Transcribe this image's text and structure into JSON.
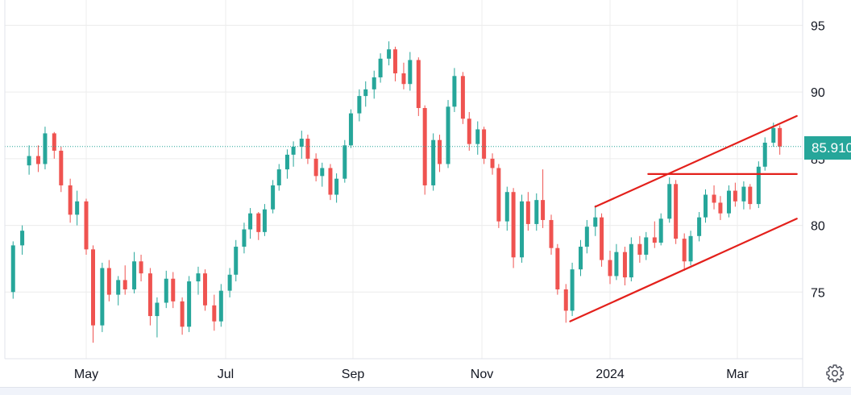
{
  "chart_data": {
    "type": "candlestick",
    "title": "",
    "xlabel": "",
    "ylabel": "",
    "ylim": [
      70,
      96.9
    ],
    "grid": true,
    "y_ticks": [
      75,
      80,
      85,
      90,
      95
    ],
    "y_tick_labels": [
      "75",
      "80",
      "85",
      "90",
      "95"
    ],
    "x_ticks": [
      {
        "date": "2023-05-01",
        "label": "May"
      },
      {
        "date": "2023-07-01",
        "label": "Jul"
      },
      {
        "date": "2023-09-01",
        "label": "Sep"
      },
      {
        "date": "2023-11-01",
        "label": "Nov"
      },
      {
        "date": "2024-01-01",
        "label": "2024"
      },
      {
        "date": "2024-03-01",
        "label": "Mar"
      }
    ],
    "last_price": 85.91,
    "last_price_label": "85.910",
    "colors": {
      "up": "#26a69a",
      "down": "#ef5350",
      "trendline": "#e3201b",
      "grid": "#ececec",
      "last_price": "#26a69a"
    },
    "trendlines": [
      {
        "name": "channel-upper",
        "from": [
          "2023-12-25",
          81.4
        ],
        "to": [
          "2024-03-29",
          88.2
        ]
      },
      {
        "name": "channel-lower",
        "from": [
          "2023-12-13",
          72.8
        ],
        "to": [
          "2024-03-29",
          80.5
        ]
      },
      {
        "name": "horizontal-resistance",
        "from": [
          "2024-01-19",
          83.85
        ],
        "to": [
          "2024-03-29",
          83.85
        ]
      }
    ],
    "candles_columns": [
      "date",
      "open",
      "high",
      "low",
      "close"
    ],
    "candles": [
      [
        "2023-03-30",
        75.0,
        78.8,
        74.5,
        78.5
      ],
      [
        "2023-04-03",
        78.5,
        80.0,
        77.8,
        79.6
      ],
      [
        "2023-04-06",
        84.5,
        86.0,
        83.8,
        85.2
      ],
      [
        "2023-04-10",
        85.2,
        86.0,
        84.0,
        84.6
      ],
      [
        "2023-04-13",
        84.6,
        87.4,
        84.2,
        86.9
      ],
      [
        "2023-04-17",
        86.9,
        87.0,
        85.0,
        85.6
      ],
      [
        "2023-04-20",
        85.6,
        85.9,
        82.5,
        83.0
      ],
      [
        "2023-04-24",
        83.0,
        83.5,
        80.2,
        80.8
      ],
      [
        "2023-04-27",
        80.8,
        82.6,
        80.0,
        81.8
      ],
      [
        "2023-05-01",
        81.8,
        82.0,
        77.8,
        78.2
      ],
      [
        "2023-05-04",
        78.2,
        78.5,
        71.2,
        72.5
      ],
      [
        "2023-05-08",
        72.5,
        77.2,
        72.0,
        76.8
      ],
      [
        "2023-05-11",
        76.8,
        77.4,
        74.3,
        74.8
      ],
      [
        "2023-05-15",
        74.8,
        76.2,
        74.0,
        75.9
      ],
      [
        "2023-05-18",
        75.9,
        77.0,
        74.8,
        75.2
      ],
      [
        "2023-05-22",
        75.2,
        78.0,
        74.9,
        77.3
      ],
      [
        "2023-05-25",
        77.3,
        77.8,
        75.8,
        76.4
      ],
      [
        "2023-05-29",
        76.4,
        76.8,
        72.5,
        73.2
      ],
      [
        "2023-06-01",
        73.2,
        74.6,
        71.6,
        74.2
      ],
      [
        "2023-06-05",
        74.2,
        76.6,
        73.8,
        76.0
      ],
      [
        "2023-06-08",
        76.0,
        76.5,
        73.8,
        74.3
      ],
      [
        "2023-06-12",
        74.3,
        74.6,
        71.8,
        72.4
      ],
      [
        "2023-06-15",
        72.4,
        76.2,
        72.0,
        75.8
      ],
      [
        "2023-06-19",
        75.8,
        76.9,
        74.8,
        76.4
      ],
      [
        "2023-06-22",
        76.4,
        76.7,
        73.6,
        74.0
      ],
      [
        "2023-06-26",
        74.0,
        74.8,
        72.1,
        72.8
      ],
      [
        "2023-06-29",
        72.8,
        75.6,
        72.4,
        75.1
      ],
      [
        "2023-07-03",
        75.1,
        76.8,
        74.6,
        76.3
      ],
      [
        "2023-07-06",
        76.3,
        78.9,
        75.8,
        78.4
      ],
      [
        "2023-07-10",
        78.4,
        80.2,
        77.9,
        79.7
      ],
      [
        "2023-07-13",
        79.7,
        81.3,
        79.0,
        80.9
      ],
      [
        "2023-07-17",
        80.9,
        81.0,
        78.9,
        79.5
      ],
      [
        "2023-07-20",
        79.5,
        81.6,
        79.2,
        81.2
      ],
      [
        "2023-07-24",
        81.2,
        83.4,
        80.9,
        83.0
      ],
      [
        "2023-07-27",
        83.0,
        84.6,
        82.6,
        84.2
      ],
      [
        "2023-07-31",
        84.2,
        85.7,
        83.5,
        85.3
      ],
      [
        "2023-08-03",
        85.3,
        86.3,
        84.4,
        85.9
      ],
      [
        "2023-08-07",
        85.9,
        87.1,
        85.0,
        86.5
      ],
      [
        "2023-08-10",
        86.5,
        86.8,
        84.6,
        85.0
      ],
      [
        "2023-08-14",
        85.0,
        85.4,
        83.3,
        83.7
      ],
      [
        "2023-08-17",
        83.7,
        84.7,
        82.9,
        84.3
      ],
      [
        "2023-08-21",
        84.3,
        84.6,
        81.9,
        82.3
      ],
      [
        "2023-08-24",
        82.3,
        83.9,
        81.7,
        83.5
      ],
      [
        "2023-08-28",
        83.5,
        86.4,
        83.2,
        86.0
      ],
      [
        "2023-08-31",
        86.0,
        88.7,
        85.8,
        88.4
      ],
      [
        "2023-09-04",
        88.4,
        90.2,
        87.8,
        89.7
      ],
      [
        "2023-09-07",
        89.7,
        90.8,
        88.9,
        90.2
      ],
      [
        "2023-09-11",
        90.2,
        91.6,
        89.5,
        91.1
      ],
      [
        "2023-09-14",
        91.1,
        92.9,
        90.7,
        92.5
      ],
      [
        "2023-09-18",
        92.5,
        93.8,
        92.0,
        93.2
      ],
      [
        "2023-09-21",
        93.2,
        93.4,
        90.8,
        91.4
      ],
      [
        "2023-09-25",
        91.4,
        92.2,
        90.2,
        90.6
      ],
      [
        "2023-09-28",
        90.6,
        93.0,
        90.1,
        92.4
      ],
      [
        "2023-10-02",
        92.4,
        92.6,
        88.2,
        88.8
      ],
      [
        "2023-10-05",
        88.8,
        89.0,
        82.3,
        83.0
      ],
      [
        "2023-10-09",
        83.0,
        86.9,
        82.6,
        86.4
      ],
      [
        "2023-10-12",
        86.4,
        86.8,
        84.0,
        84.6
      ],
      [
        "2023-10-16",
        84.6,
        89.4,
        84.3,
        88.9
      ],
      [
        "2023-10-19",
        88.9,
        91.8,
        88.5,
        91.2
      ],
      [
        "2023-10-23",
        91.2,
        91.5,
        87.6,
        88.0
      ],
      [
        "2023-10-26",
        88.0,
        88.5,
        85.6,
        86.1
      ],
      [
        "2023-10-30",
        86.1,
        87.8,
        85.3,
        87.2
      ],
      [
        "2023-11-02",
        87.2,
        87.4,
        84.6,
        85.0
      ],
      [
        "2023-11-06",
        85.0,
        85.4,
        83.8,
        84.3
      ],
      [
        "2023-11-09",
        84.3,
        84.6,
        79.8,
        80.3
      ],
      [
        "2023-11-13",
        80.3,
        82.9,
        79.6,
        82.5
      ],
      [
        "2023-11-16",
        82.5,
        82.8,
        76.8,
        77.6
      ],
      [
        "2023-11-20",
        77.6,
        82.3,
        77.2,
        81.8
      ],
      [
        "2023-11-23",
        81.8,
        82.5,
        79.6,
        80.1
      ],
      [
        "2023-11-27",
        80.1,
        82.4,
        79.6,
        81.9
      ],
      [
        "2023-11-30",
        81.9,
        84.2,
        79.8,
        80.4
      ],
      [
        "2023-12-04",
        80.4,
        80.8,
        77.8,
        78.3
      ],
      [
        "2023-12-07",
        78.3,
        78.6,
        74.8,
        75.2
      ],
      [
        "2023-12-11",
        75.2,
        75.6,
        72.7,
        73.6
      ],
      [
        "2023-12-14",
        73.6,
        77.2,
        73.2,
        76.7
      ],
      [
        "2023-12-18",
        76.7,
        78.9,
        76.2,
        78.4
      ],
      [
        "2023-12-21",
        78.4,
        80.4,
        77.9,
        79.9
      ],
      [
        "2023-12-25",
        79.9,
        81.5,
        79.2,
        80.6
      ],
      [
        "2023-12-28",
        80.6,
        80.9,
        76.9,
        77.4
      ],
      [
        "2024-01-01",
        77.4,
        78.1,
        75.6,
        76.2
      ],
      [
        "2024-01-04",
        76.2,
        78.6,
        75.9,
        78.0
      ],
      [
        "2024-01-08",
        78.0,
        78.4,
        75.5,
        76.1
      ],
      [
        "2024-01-11",
        76.1,
        79.1,
        75.8,
        78.6
      ],
      [
        "2024-01-15",
        78.6,
        79.2,
        77.2,
        77.8
      ],
      [
        "2024-01-18",
        77.8,
        79.5,
        77.4,
        79.1
      ],
      [
        "2024-01-22",
        79.1,
        80.3,
        78.3,
        78.7
      ],
      [
        "2024-01-25",
        78.7,
        80.9,
        78.5,
        80.5
      ],
      [
        "2024-01-29",
        80.5,
        83.6,
        80.2,
        83.1
      ],
      [
        "2024-02-01",
        83.1,
        83.4,
        78.6,
        79.0
      ],
      [
        "2024-02-05",
        79.0,
        79.4,
        76.6,
        77.3
      ],
      [
        "2024-02-08",
        77.3,
        79.6,
        77.0,
        79.2
      ],
      [
        "2024-02-12",
        79.2,
        81.0,
        78.8,
        80.6
      ],
      [
        "2024-02-15",
        80.6,
        82.7,
        80.2,
        82.3
      ],
      [
        "2024-02-19",
        82.3,
        83.0,
        81.2,
        81.7
      ],
      [
        "2024-02-22",
        81.7,
        82.2,
        80.4,
        80.9
      ],
      [
        "2024-02-26",
        80.9,
        83.0,
        80.6,
        82.6
      ],
      [
        "2024-02-29",
        82.6,
        83.2,
        81.4,
        81.8
      ],
      [
        "2024-03-04",
        81.8,
        83.3,
        81.2,
        82.9
      ],
      [
        "2024-03-07",
        82.9,
        83.1,
        81.2,
        81.6
      ],
      [
        "2024-03-11",
        81.6,
        84.8,
        81.3,
        84.4
      ],
      [
        "2024-03-14",
        84.4,
        86.6,
        84.1,
        86.2
      ],
      [
        "2024-03-18",
        86.2,
        87.7,
        85.9,
        87.3
      ],
      [
        "2024-03-21",
        87.3,
        87.5,
        85.3,
        85.91
      ]
    ]
  },
  "settings": {
    "icon": "gear-icon"
  }
}
